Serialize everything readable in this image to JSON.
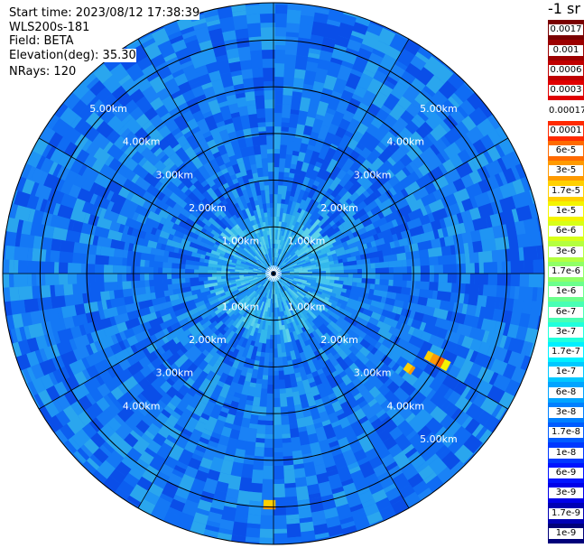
{
  "header": {
    "start_time": "Start time: 2023/08/12 17:38:39",
    "instrument": "WLS200s-181",
    "field": "Field: BETA",
    "elevation": "Elevation(deg): 35.30",
    "nrays": "NRays: 120"
  },
  "colorbar": {
    "unit": "-1 sr",
    "labels": [
      "0.0017",
      "0.001",
      "0.0006",
      "0.0003",
      "0.00017",
      "0.0001",
      "6e-5",
      "3e-5",
      "1.7e-5",
      "1e-5",
      "6e-6",
      "3e-6",
      "1.7e-6",
      "1e-6",
      "6e-7",
      "3e-7",
      "1.7e-7",
      "1e-7",
      "6e-8",
      "3e-8",
      "1.7e-8",
      "1e-8",
      "6e-9",
      "3e-9",
      "1.7e-9",
      "1e-9"
    ],
    "colors": [
      "#7a0000",
      "#9c0000",
      "#c00000",
      "#e00000",
      "#ffffff",
      "#ff2a00",
      "#ff6a00",
      "#ff9a00",
      "#ffd000",
      "#f4f400",
      "#d8ff18",
      "#b4ff40",
      "#90ff66",
      "#6cff8c",
      "#48ffb4",
      "#20ffdc",
      "#00f0ff",
      "#00c8ff",
      "#00a4ff",
      "#0080ff",
      "#005cff",
      "#0038ff",
      "#0014ff",
      "#0000e8",
      "#0000b4",
      "#00007a"
    ]
  },
  "chart_data": {
    "type": "heatmap",
    "projection": "polar",
    "field": "BETA",
    "nrays": 120,
    "range_unit": "km",
    "range_max_km": 5.8,
    "ring_labels": [
      "1.00km",
      "2.00km",
      "3.00km",
      "4.00km",
      "5.00km"
    ],
    "ring_label_visible": [
      [
        1,
        1,
        1,
        1
      ],
      [
        1,
        1,
        1,
        1
      ],
      [
        1,
        1,
        1,
        1
      ],
      [
        1,
        1,
        1,
        1
      ],
      [
        1,
        1,
        0,
        1
      ]
    ],
    "spokes_deg": [
      0,
      30,
      60,
      90,
      120,
      150,
      180,
      210,
      240,
      270,
      300,
      330
    ],
    "typical_value": "1e-7 to 3e-7",
    "features": [
      {
        "azimuth_deg": 118,
        "range_km": [
          3.7,
          4.25
        ],
        "value": "1.7e-5 to 1e-4"
      },
      {
        "azimuth_deg": 125,
        "range_km": [
          3.45,
          3.65
        ],
        "value": "1.7e-5"
      },
      {
        "azimuth_deg": 181,
        "range_km": [
          4.85,
          5.05
        ],
        "value": "1e-5 to 3e-5"
      }
    ]
  }
}
